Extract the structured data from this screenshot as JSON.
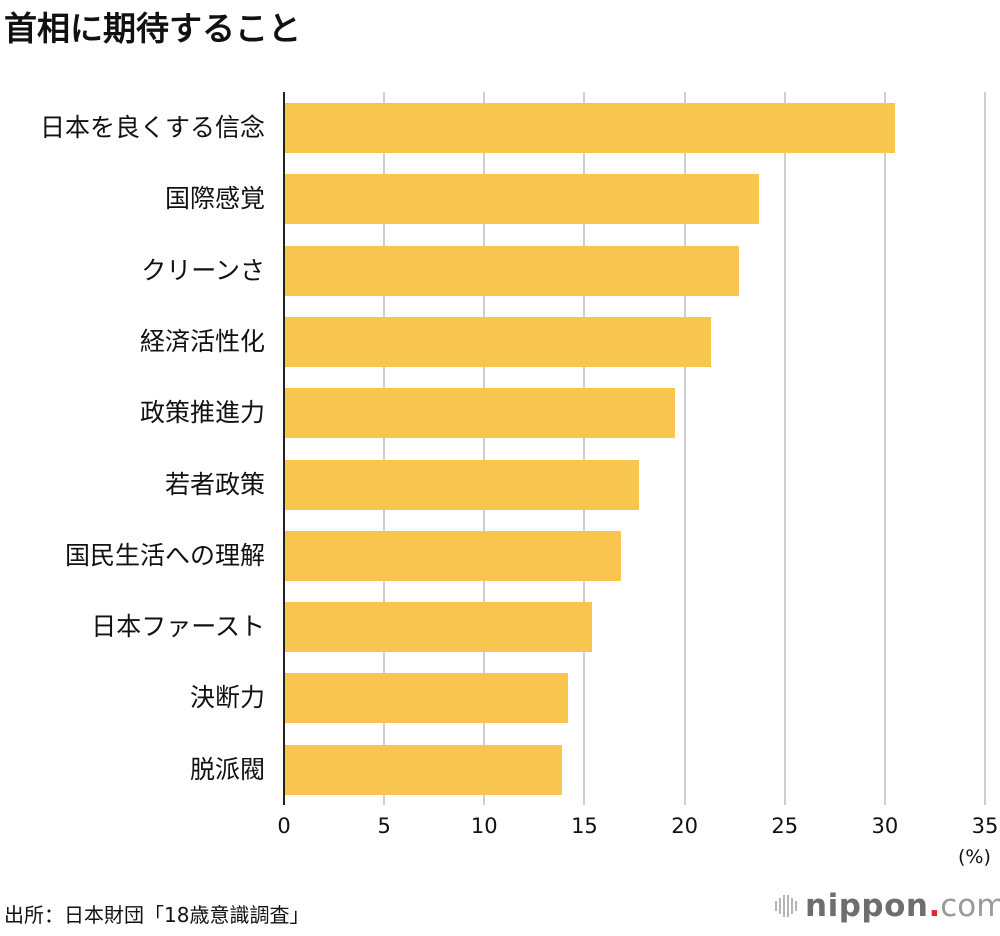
{
  "title": "首相に期待すること",
  "source": "出所：日本財団「18歳意識調査」",
  "logo": {
    "main": "nippon",
    "dot": ".",
    "suffix": "com"
  },
  "colors": {
    "bar": "#F8C54E",
    "grid": "#CFCFCF",
    "axis": "#222222",
    "logo_dot": "#E4262B"
  },
  "chart_data": {
    "type": "bar",
    "orientation": "horizontal",
    "title": "首相に期待すること",
    "categories": [
      "日本を良くする信念",
      "国際感覚",
      "クリーンさ",
      "経済活性化",
      "政策推進力",
      "若者政策",
      "国民生活への理解",
      "日本ファースト",
      "決断力",
      "脱派閥"
    ],
    "values": [
      30.5,
      23.7,
      22.7,
      21.3,
      19.5,
      17.7,
      16.8,
      15.4,
      14.2,
      13.9
    ],
    "xlabel": "(%)",
    "ylabel": "",
    "xlim": [
      0,
      35
    ],
    "xticks": [
      "0",
      "5",
      "10",
      "15",
      "20",
      "25",
      "30",
      "35"
    ],
    "grid": true,
    "source": "出所：日本財団「18歳意識調査」"
  }
}
